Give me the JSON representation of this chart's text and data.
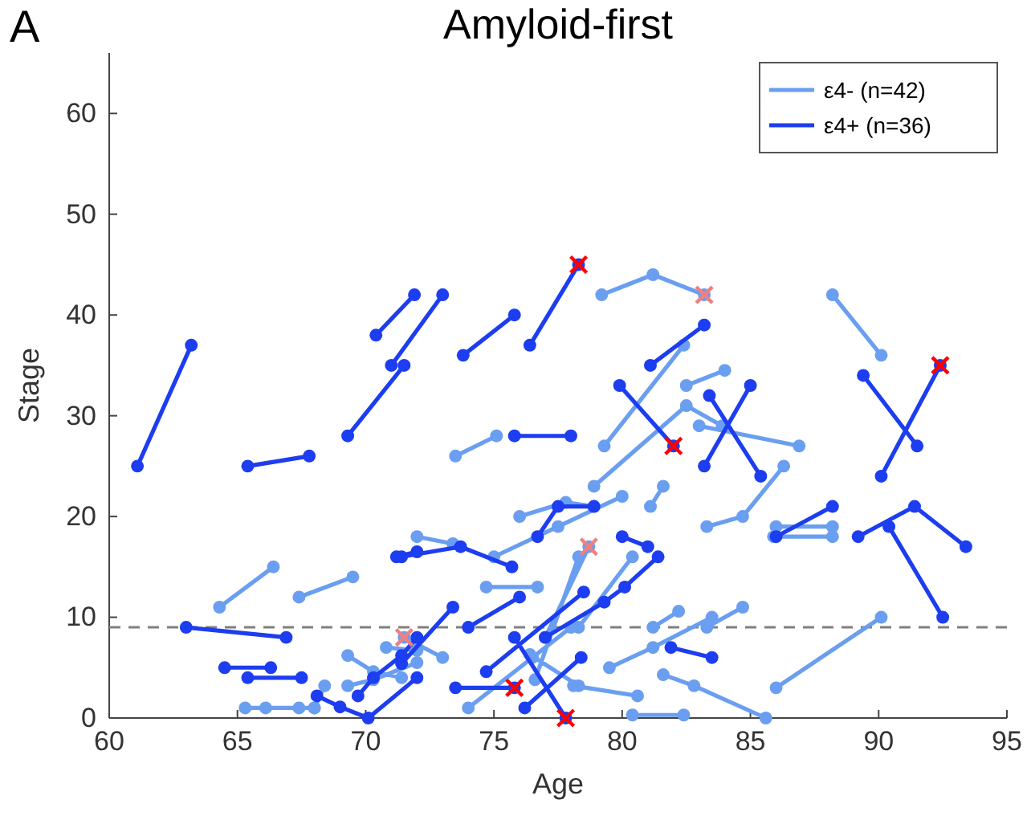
{
  "chart_data": {
    "type": "line",
    "title": "Amyloid-first",
    "xlabel": "Age",
    "ylabel": "Stage",
    "annotations": [
      "A"
    ],
    "xlim": [
      60,
      95
    ],
    "xticks": [
      60,
      65,
      70,
      75,
      80,
      85,
      90,
      95
    ],
    "ylim": [
      0,
      66
    ],
    "yticks": [
      0,
      10,
      20,
      30,
      40,
      50,
      60
    ],
    "grid": false,
    "legend": "top right",
    "marker": "circle",
    "line_style": "solid",
    "ref_lines": [
      {
        "axis": "y",
        "value": 9,
        "color": "#808080",
        "line_style": "dashed"
      }
    ],
    "series": [
      {
        "name": "ε4-  (n=42)",
        "color": "#6a9ef0",
        "x": [
          64.3,
          66.4,
          null,
          67.4,
          69.5,
          null,
          73.5,
          75.1,
          null,
          79.3,
          82.4,
          null,
          79.2,
          81.2,
          83.2,
          null,
          82.5,
          84,
          null,
          78.9,
          82.5,
          83.9,
          null,
          83,
          86.9,
          null,
          88.2,
          90.1,
          null,
          85.9,
          88.2,
          null,
          86,
          88.2,
          null,
          86,
          90.1,
          null,
          65.3,
          66.1,
          67.4,
          68,
          null,
          68,
          68.4,
          null,
          69.3,
          70.3,
          71.4,
          null,
          70.8,
          72,
          null,
          69.3,
          70.3,
          72,
          null,
          72,
          73.4,
          null,
          74.7,
          76.7,
          null,
          76,
          77.8,
          78.9,
          null,
          81.1,
          81.6,
          null,
          77,
          78.7,
          null,
          78.3,
          80.4,
          null,
          78.1,
          80.6,
          null,
          76.4,
          78.3,
          null,
          80.4,
          82.4,
          null,
          81.6,
          82.8,
          85.6,
          null,
          81.2,
          82.2,
          null,
          83.3,
          84.7,
          null,
          83.3,
          84.7,
          86.3,
          null,
          76.6,
          78.3,
          null,
          71.5,
          73,
          null,
          74,
          76.5,
          78,
          null,
          75,
          77.5,
          80,
          null,
          79.5,
          81.2,
          83.5
        ],
        "values": [
          11,
          15,
          null,
          12,
          14,
          null,
          26,
          28,
          null,
          27,
          37,
          null,
          42,
          44,
          42,
          null,
          33,
          34.5,
          null,
          23,
          31,
          29,
          null,
          29,
          27,
          null,
          42,
          36,
          null,
          18,
          18,
          null,
          19,
          19,
          null,
          3,
          10,
          null,
          1,
          1,
          1,
          1,
          null,
          1,
          3.2,
          null,
          6.2,
          4.6,
          4,
          null,
          7,
          6.7,
          null,
          3.2,
          3.8,
          5.5,
          null,
          18,
          17.3,
          null,
          13,
          13,
          null,
          20,
          21.4,
          21,
          null,
          21,
          23,
          null,
          8,
          17,
          null,
          9,
          16,
          null,
          3.2,
          2.2,
          null,
          6.3,
          3.2,
          null,
          0.3,
          0.3,
          null,
          4.3,
          3.2,
          0,
          null,
          9,
          10.6,
          null,
          9,
          11,
          null,
          19,
          20,
          25,
          null,
          3.8,
          16,
          null,
          8,
          6,
          null,
          1,
          6,
          9,
          null,
          16,
          19,
          22,
          null,
          5,
          7,
          10
        ]
      },
      {
        "name": "ε4+ (n=36)",
        "color": "#1c3df0",
        "x": [
          61.1,
          63.2,
          null,
          63,
          66.9,
          null,
          64.5,
          66.3,
          null,
          65.4,
          67.5,
          null,
          65.4,
          67.8,
          null,
          69.3,
          71.5,
          null,
          70.4,
          71.9,
          null,
          71,
          73,
          null,
          73.8,
          75.8,
          null,
          75.8,
          78,
          null,
          76.4,
          78.3,
          null,
          79.9,
          82,
          null,
          81.1,
          83.2,
          null,
          83.2,
          85,
          null,
          83.4,
          85.4,
          null,
          89.4,
          91.5,
          null,
          90.1,
          92.4,
          null,
          89.2,
          91.4,
          93.4,
          null,
          90.4,
          92.5,
          null,
          86,
          88.2,
          null,
          71.4,
          73.7,
          75.7,
          null,
          76.7,
          77.5,
          78.9,
          null,
          80,
          81,
          null,
          81.4,
          80.1,
          79.3,
          77,
          null,
          73.4,
          71.4,
          null,
          74,
          76,
          null,
          75.8,
          77.8,
          null,
          73.5,
          75.8,
          null,
          76.2,
          78.4,
          null,
          74.7,
          78.5,
          null,
          81.9,
          83.5,
          null,
          68.1,
          69,
          70.1,
          72,
          null,
          71.2,
          72,
          null,
          69.7,
          70.3,
          71.4,
          72
        ],
        "values": [
          25,
          37,
          null,
          9,
          8,
          null,
          5,
          5,
          null,
          4,
          4,
          null,
          25,
          26,
          null,
          28,
          35,
          null,
          38,
          42,
          null,
          35,
          42,
          null,
          36,
          40,
          null,
          28,
          28,
          null,
          37,
          45,
          null,
          33,
          27,
          null,
          35,
          39,
          null,
          25,
          33,
          null,
          32,
          24,
          null,
          34,
          27,
          null,
          24,
          35,
          null,
          18,
          21,
          17,
          null,
          19,
          10,
          null,
          18,
          21,
          null,
          16,
          17,
          15,
          null,
          18,
          21,
          21,
          null,
          18,
          17,
          null,
          16,
          13,
          11.5,
          8,
          null,
          11,
          5.4,
          null,
          9,
          12,
          null,
          8,
          0,
          null,
          3,
          3,
          null,
          1,
          6,
          null,
          4.6,
          12.5,
          null,
          7,
          6,
          null,
          2.2,
          1.1,
          0,
          4,
          null,
          16,
          16.5,
          null,
          2.2,
          4,
          6.2,
          8
        ]
      },
      {
        "type": "scatter",
        "marker": "cross",
        "color": "#ff0000",
        "x": [
          78.3,
          82,
          92.4,
          75.8,
          77.8
        ],
        "values": [
          45,
          27,
          35,
          3,
          0
        ]
      },
      {
        "type": "scatter",
        "marker": "cross",
        "color": "#f08080",
        "x": [
          83.2,
          78.7,
          71.5
        ],
        "values": [
          42,
          17,
          8
        ]
      }
    ]
  }
}
